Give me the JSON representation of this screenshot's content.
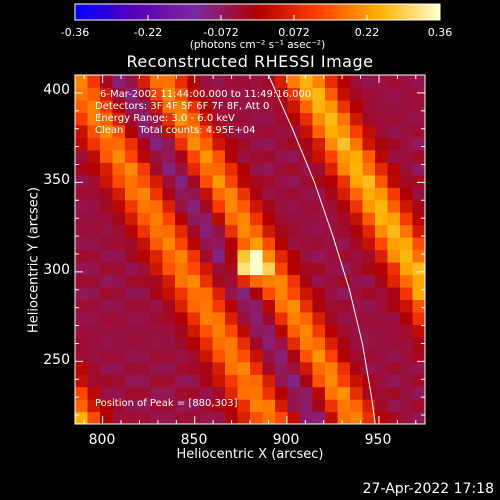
{
  "chart_data": {
    "type": "heatmap",
    "title": "Reconstructed RHESSI Image",
    "xlabel": "Heliocentric X (arcsec)",
    "ylabel": "Heliocentric Y (arcsec)",
    "xlim": [
      785,
      975
    ],
    "ylim": [
      215,
      410
    ],
    "x_ticks": [
      800,
      850,
      900,
      950
    ],
    "y_ticks": [
      250,
      300,
      350,
      400
    ],
    "colorbar": {
      "range": [
        -0.36,
        0.36
      ],
      "ticks": [
        "-0.36",
        "-0.22",
        "-0.072",
        "0.072",
        "0.22",
        "0.36"
      ],
      "units_label": "(photons cm⁻² s⁻¹ asec⁻²)",
      "colormap": [
        "#0000ff",
        "#5a00b4",
        "#7a2a9e",
        "#b00000",
        "#ff4000",
        "#ffb000",
        "#ffffcc"
      ]
    },
    "peak": {
      "x": 880,
      "y": 303
    },
    "annotations": {
      "time_range": "6-Mar-2002 11:44:00.000 to 11:49:16.000",
      "detectors": "Detectors: 3F 4F 5F 6F 7F 8F, Att 0",
      "energy": "Energy Range: 3.0 - 6.0 keV",
      "clean": "Clean     Total counts: 4.95E+04",
      "position_of_peak": "Position of Peak = [880,303]"
    },
    "limb_points": [
      [
        890,
        410
      ],
      [
        903,
        380
      ],
      [
        915,
        350
      ],
      [
        925,
        320
      ],
      [
        934,
        290
      ],
      [
        941,
        260
      ],
      [
        946,
        230
      ],
      [
        948,
        215
      ]
    ]
  },
  "footer": {
    "timestamp": "27-Apr-2022 17:18"
  }
}
